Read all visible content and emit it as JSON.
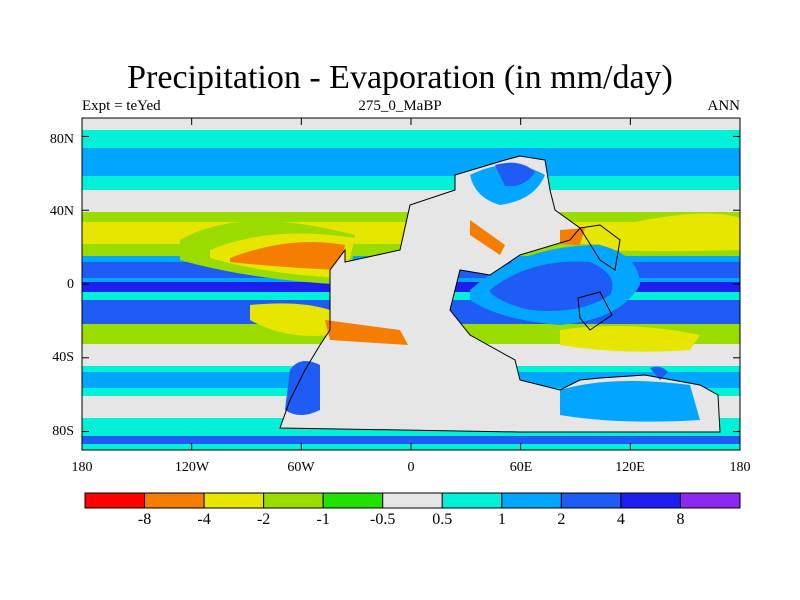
{
  "title": "Precipitation - Evaporation (in mm/day)",
  "subtitles": {
    "left": "Expt = teYed",
    "center": "275_0_MaBP",
    "right": "ANN"
  },
  "axes": {
    "lat_ticks": [
      "80N",
      "40N",
      "0",
      "40S",
      "80S"
    ],
    "lon_ticks": [
      "180",
      "120W",
      "60W",
      "0",
      "60E",
      "120E",
      "180"
    ]
  },
  "colorbar": {
    "colors": [
      "#ff0000",
      "#f57d00",
      "#e6e600",
      "#9bdc00",
      "#22e000",
      "#e6e6e6",
      "#00f0d8",
      "#00a6ff",
      "#1e5cf5",
      "#1e1ef0",
      "#8c28f0"
    ],
    "labels": [
      "-8",
      "-4",
      "-2",
      "-1",
      "-0.5",
      "0.5",
      "1",
      "2",
      "4",
      "8"
    ]
  },
  "chart_data": {
    "type": "contour_map",
    "variable": "Precipitation - Evaporation",
    "units": "mm/day",
    "experiment": "teYed",
    "period": "275_0_MaBP",
    "season": "ANN",
    "levels": [
      -8,
      -4,
      -2,
      -1,
      -0.5,
      0.5,
      1,
      2,
      4,
      8
    ],
    "xlim": [
      -180,
      180
    ],
    "ylim": [
      -90,
      90
    ]
  }
}
